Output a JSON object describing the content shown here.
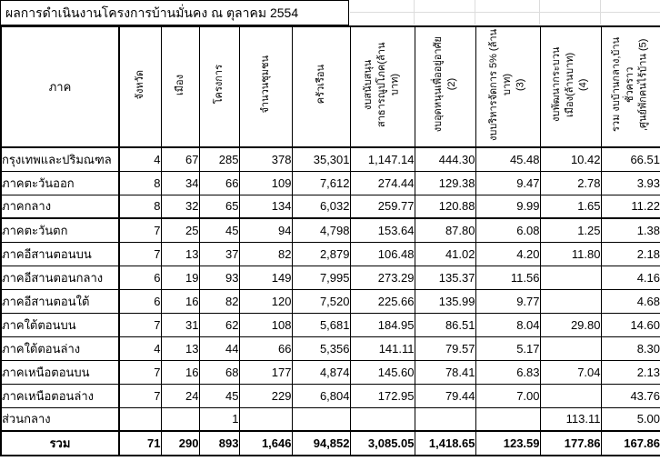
{
  "title": "ผลการดำเนินงานโครงการบ้านมั่นคง ณ ตุลาคม 2554",
  "table": {
    "row_header_label": "ภาค",
    "columns": [
      "จังหวัด",
      "เมือง",
      "โครงการ",
      "จำนวนชุมชน",
      "ครัวเรือน",
      "งบสนับสนุนสาธารณูปโภค(ล้าน\nบาท)",
      "งบอุดหนุนเพื่ออยู่อาศัย\n(2)",
      "งบบริหารจัดการ 5% (ล้านบาท)\n(3)",
      "งบพัฒนากระบวนเมือง(ล้านบาท)\n(4)",
      "รวม งบบ้านกลาง,บ้านชั่วคราว\n,ศูนย์พักคนไร้บ้าน (5)"
    ],
    "rows": [
      {
        "region": "กรุงเทพและปริมณฑล",
        "values": [
          "4",
          "67",
          "285",
          "378",
          "35,301",
          "1,147.14",
          "444.30",
          "45.48",
          "10.42",
          "66.51"
        ]
      },
      {
        "region": "ภาคตะวันออก",
        "values": [
          "8",
          "34",
          "66",
          "109",
          "7,612",
          "274.44",
          "129.38",
          "9.47",
          "2.78",
          "3.93"
        ]
      },
      {
        "region": "ภาคกลาง",
        "values": [
          "8",
          "32",
          "65",
          "134",
          "6,032",
          "259.77",
          "120.88",
          "9.99",
          "1.65",
          "11.22"
        ]
      },
      {
        "region": "ภาคตะวันตก",
        "values": [
          "7",
          "25",
          "45",
          "94",
          "4,798",
          "153.64",
          "87.80",
          "6.08",
          "1.25",
          "1.38"
        ]
      },
      {
        "region": "ภาคอีสานตอนบน",
        "values": [
          "7",
          "13",
          "37",
          "82",
          "2,879",
          "106.48",
          "41.02",
          "4.20",
          "11.80",
          "2.18"
        ]
      },
      {
        "region": "ภาคอีสานตอนกลาง",
        "values": [
          "6",
          "19",
          "93",
          "149",
          "7,995",
          "273.29",
          "135.37",
          "11.56",
          "",
          "4.16"
        ]
      },
      {
        "region": "ภาคอีสานตอนใต้",
        "values": [
          "6",
          "16",
          "82",
          "120",
          "7,520",
          "225.66",
          "135.99",
          "9.77",
          "",
          "4.68"
        ]
      },
      {
        "region": "ภาคใต้ตอนบน",
        "values": [
          "7",
          "31",
          "62",
          "108",
          "5,681",
          "184.95",
          "86.51",
          "8.04",
          "29.80",
          "14.60"
        ]
      },
      {
        "region": "ภาคใต้ตอนล่าง",
        "values": [
          "4",
          "13",
          "44",
          "66",
          "5,356",
          "141.11",
          "79.57",
          "5.17",
          "",
          "8.30"
        ]
      },
      {
        "region": "ภาคเหนือตอนบน",
        "values": [
          "7",
          "16",
          "68",
          "177",
          "4,874",
          "145.60",
          "78.41",
          "6.83",
          "7.04",
          "2.13"
        ]
      },
      {
        "region": "ภาคเหนือตอนล่าง",
        "values": [
          "7",
          "24",
          "45",
          "229",
          "6,804",
          "172.95",
          "79.44",
          "7.00",
          "",
          "43.76"
        ]
      },
      {
        "region": "ส่วนกลาง",
        "values": [
          "",
          "",
          "1",
          "",
          "",
          "",
          "",
          "",
          "113.11",
          "5.00"
        ]
      }
    ],
    "total": {
      "label": "รวม",
      "values": [
        "71",
        "290",
        "893",
        "1,646",
        "94,852",
        "3,085.05",
        "1,418.65",
        "123.59",
        "177.86",
        "167.86"
      ]
    }
  }
}
